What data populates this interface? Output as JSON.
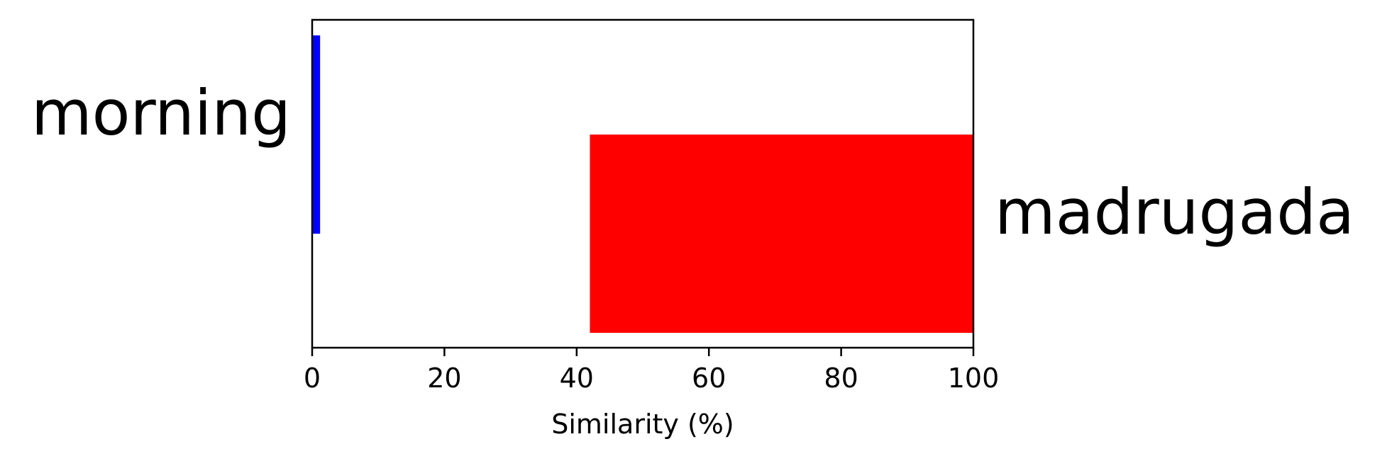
{
  "chart_data": {
    "type": "bar",
    "orientation": "horizontal",
    "xlabel": "Similarity (%)",
    "xlim": [
      0,
      100
    ],
    "xticks": [
      0,
      20,
      40,
      60,
      80,
      100
    ],
    "grid": false,
    "series": [
      {
        "label": "morning",
        "start": 0,
        "end": 1.2,
        "color": "#0000ff"
      },
      {
        "label": "madrugada",
        "start": 42,
        "end": 100,
        "color": "#ff0000"
      }
    ]
  }
}
